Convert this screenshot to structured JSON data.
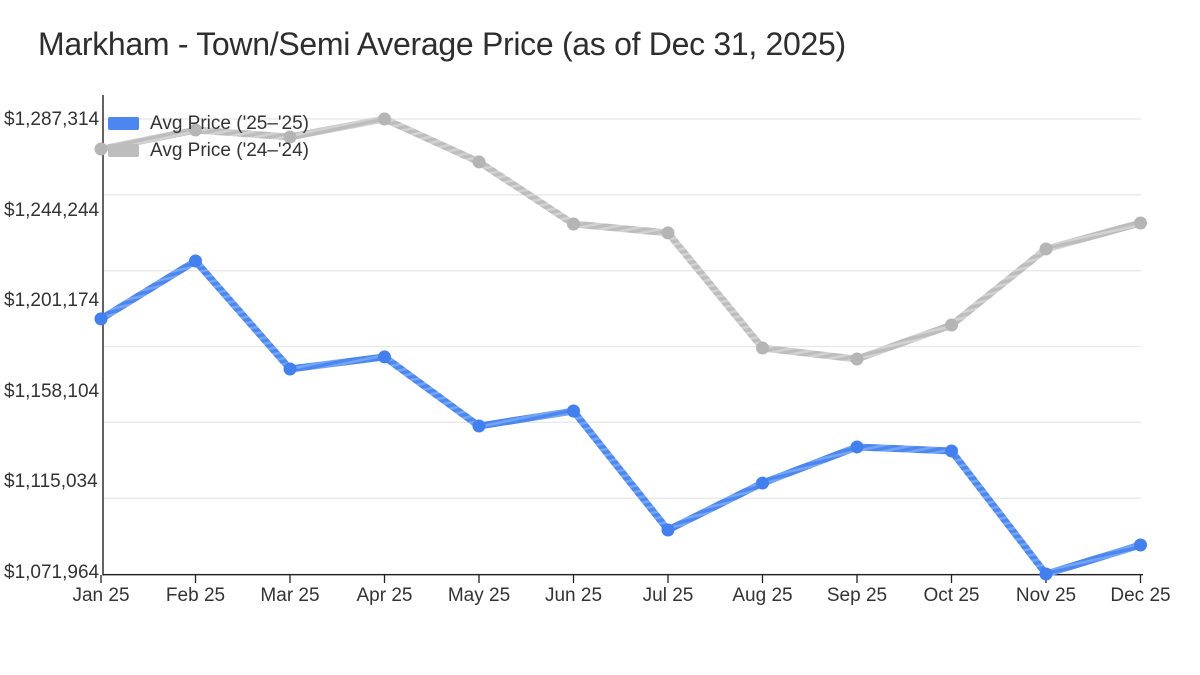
{
  "title": "Markham - Town/Semi Average Price (as of Dec 31, 2025)",
  "legend": [
    {
      "label": "Avg Price ('25–'25)",
      "series": "2025"
    },
    {
      "label": "Avg Price ('24–'24)",
      "series": "2024"
    }
  ],
  "colors": {
    "blue": "#4c86ef",
    "blue_stripe": "#73a4f6",
    "blue_marker": "#4280f0",
    "gray": "#bdbdbd",
    "gray_stripe": "#d2d2d2",
    "gray_marker": "#b5b5b5",
    "grid": "#e8e8e8",
    "axis": "#222222",
    "text": "#333333",
    "title_text": "#2e2e2e"
  },
  "chart_data": {
    "type": "line",
    "title": "Markham - Town/Semi Average Price (as of Dec 31, 2025)",
    "categories": [
      "Jan 25",
      "Feb 25",
      "Mar 25",
      "Apr 25",
      "May 25",
      "Jun 25",
      "Jul 25",
      "Aug 25",
      "Sep 25",
      "Oct 25",
      "Nov 25",
      "Dec 25"
    ],
    "series": [
      {
        "name": "Avg Price ('25–'25)",
        "color_key": "blue",
        "values": [
          1192700,
          1220100,
          1169000,
          1174700,
          1142000,
          1149100,
          1092800,
          1115000,
          1132100,
          1130200,
          1071964,
          1085700
        ]
      },
      {
        "name": "Avg Price ('24–'24)",
        "color_key": "gray",
        "values": [
          1273100,
          1282100,
          1278800,
          1287314,
          1267000,
          1237600,
          1233400,
          1178900,
          1173700,
          1189800,
          1225800,
          1238100
        ]
      }
    ],
    "ylim": [
      1071964,
      1287314
    ],
    "y_tick_labels": [
      "$1,287,314",
      "$1,244,244",
      "$1,201,174",
      "$1,158,104",
      "$1,115,034",
      "$1,071,964"
    ],
    "x_tick_labels": [
      "Jan 25",
      "Feb 25",
      "Mar 25",
      "Apr 25",
      "May 25",
      "Jun 25",
      "Jul 25",
      "Aug 25",
      "Sep 25",
      "Oct 25",
      "Nov 25",
      "Dec 25"
    ],
    "gridlines": 7,
    "grid": true,
    "legend_position": "top-left",
    "xlabel": "",
    "ylabel": ""
  }
}
